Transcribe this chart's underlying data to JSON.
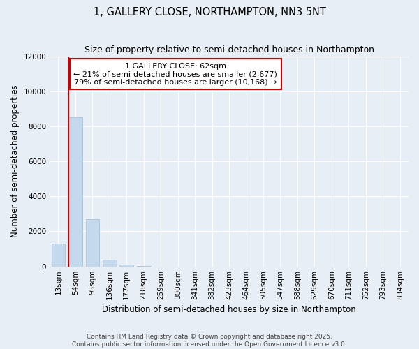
{
  "title": "1, GALLERY CLOSE, NORTHAMPTON, NN3 5NT",
  "subtitle": "Size of property relative to semi-detached houses in Northampton",
  "xlabel": "Distribution of semi-detached houses by size in Northampton",
  "ylabel": "Number of semi-detached properties",
  "annotation_title": "1 GALLERY CLOSE: 62sqm",
  "annotation_line1": "← 21% of semi-detached houses are smaller (2,677)",
  "annotation_line2": "79% of semi-detached houses are larger (10,168) →",
  "footer_line1": "Contains HM Land Registry data © Crown copyright and database right 2025.",
  "footer_line2": "Contains public sector information licensed under the Open Government Licence v3.0.",
  "categories": [
    "13sqm",
    "54sqm",
    "95sqm",
    "136sqm",
    "177sqm",
    "218sqm",
    "259sqm",
    "300sqm",
    "341sqm",
    "382sqm",
    "423sqm",
    "464sqm",
    "505sqm",
    "547sqm",
    "588sqm",
    "629sqm",
    "670sqm",
    "711sqm",
    "752sqm",
    "793sqm",
    "834sqm"
  ],
  "values": [
    1300,
    8500,
    2700,
    400,
    100,
    20,
    5,
    2,
    1,
    1,
    0,
    0,
    0,
    0,
    0,
    0,
    0,
    0,
    0,
    0,
    0
  ],
  "bar_color": "#c5d9ec",
  "bar_edge_color": "#a0bcd0",
  "property_line_index": 1,
  "property_line_color": "#cc0000",
  "ylim": [
    0,
    12000
  ],
  "yticks": [
    0,
    2000,
    4000,
    6000,
    8000,
    10000,
    12000
  ],
  "annotation_box_color": "#cc0000",
  "annotation_bg": "white",
  "bg_color": "#e8eef5",
  "grid_color": "#ffffff",
  "title_fontsize": 10.5,
  "subtitle_fontsize": 9,
  "axis_label_fontsize": 8.5,
  "tick_fontsize": 7.5,
  "footer_fontsize": 6.5,
  "annotation_fontsize": 8
}
